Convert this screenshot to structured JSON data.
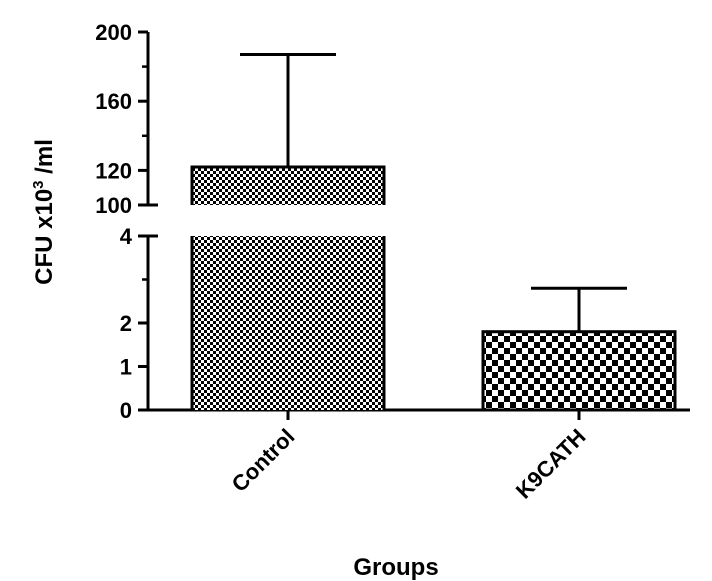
{
  "chart_data": {
    "type": "bar",
    "categories": [
      "Control",
      "K9CATH"
    ],
    "values": [
      122,
      1.8
    ],
    "error_upper": [
      187,
      2.8
    ],
    "ylabel": {
      "prefix": "CFU x10",
      "sup": "3",
      "suffix": " /ml"
    },
    "xlabel": "Groups",
    "y_axis_broken": true,
    "y_segments": [
      {
        "range": [
          0,
          4
        ],
        "ticks": [
          0,
          1,
          2,
          4
        ]
      },
      {
        "range": [
          100,
          200
        ],
        "ticks": [
          100,
          120,
          160,
          200
        ]
      }
    ],
    "bar_patterns": [
      "fine-checker",
      "coarse-checker"
    ],
    "grid": false,
    "legend": "none"
  }
}
